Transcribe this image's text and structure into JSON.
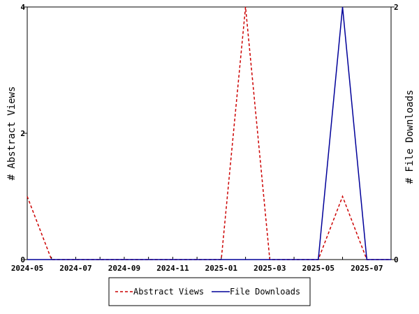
{
  "chart_data": {
    "type": "line",
    "x": [
      "2024-05",
      "2024-06",
      "2024-07",
      "2024-08",
      "2024-09",
      "2024-10",
      "2024-11",
      "2024-12",
      "2025-01",
      "2025-02",
      "2025-03",
      "2025-04",
      "2025-05",
      "2025-06",
      "2025-07",
      "2025-08"
    ],
    "x_tick_labels": [
      "2024-05",
      "2024-07",
      "2024-09",
      "2024-11",
      "2025-01",
      "2025-03",
      "2025-05",
      "2025-07"
    ],
    "series": [
      {
        "name": "Abstract Views",
        "axis": "left",
        "color": "#cc0000",
        "dash": "dashed",
        "values": [
          1,
          0,
          0,
          0,
          0,
          0,
          0,
          0,
          0,
          4,
          0,
          0,
          0,
          1,
          0,
          0
        ]
      },
      {
        "name": "File Downloads",
        "axis": "right",
        "color": "#000099",
        "dash": "solid",
        "values": [
          0,
          0,
          0,
          0,
          0,
          0,
          0,
          0,
          0,
          0,
          0,
          0,
          0,
          2,
          0,
          0
        ]
      }
    ],
    "ylabel": "# Abstract Views",
    "y2label": "# File Downloads",
    "ylim": [
      0,
      4
    ],
    "y2lim": [
      0,
      2
    ],
    "yticks": [
      0,
      2,
      4
    ],
    "y2ticks": [
      0,
      2
    ],
    "grid": false,
    "legend": "bottom-center"
  }
}
